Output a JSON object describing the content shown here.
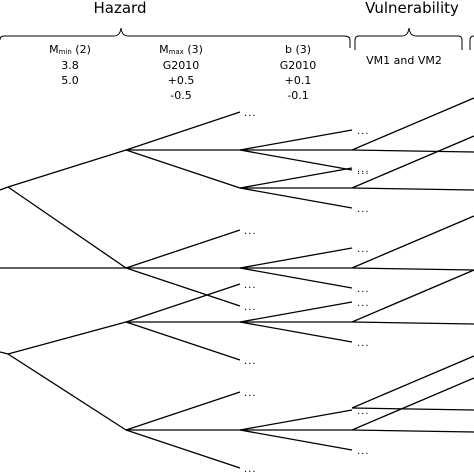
{
  "headers": {
    "hazard": "Hazard",
    "vulnerability": "Vulnerability"
  },
  "nodes": {
    "mmin": {
      "prefix": "M",
      "sub": "min",
      "count": " (2)",
      "values": [
        "3.8",
        "5.0"
      ]
    },
    "mmax": {
      "prefix": "M",
      "sub": "max",
      "count": " (3)",
      "values": [
        "G2010",
        "+0.5",
        "-0.5"
      ]
    },
    "b": {
      "title": "b (3)",
      "values": [
        "G2010",
        "+0.1",
        "-0.1"
      ]
    },
    "vm": {
      "title": "VM1 and VM2"
    }
  },
  "ellipsis": "..."
}
